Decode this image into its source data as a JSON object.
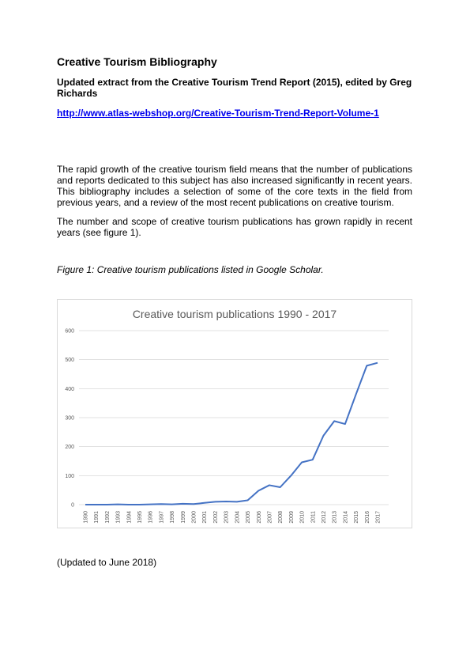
{
  "header": {
    "title": "Creative Tourism Bibliography",
    "subtitle": "Updated extract from the Creative Tourism Trend Report (2015), edited by Greg Richards",
    "link": "http://www.atlas-webshop.org/Creative-Tourism-Trend-Report-Volume-1"
  },
  "body": {
    "paragraphs": [
      "The rapid growth of the creative tourism field means that the number of publications and reports dedicated to this subject has also increased significantly in recent years. This bibliography includes a selection of some of the core texts in the field from previous years, and a review of the most recent publications on creative tourism.",
      "The number and scope of creative tourism publications has grown rapidly in recent years (see figure 1)."
    ]
  },
  "figure": {
    "caption": "Figure 1: Creative tourism publications listed in Google Scholar."
  },
  "chart_data": {
    "type": "line",
    "title": "Creative tourism publications 1990 - 2017",
    "categories": [
      "1990",
      "1991",
      "1992",
      "1993",
      "1994",
      "1995",
      "1996",
      "1997",
      "1998",
      "1999",
      "2000",
      "2001",
      "2002",
      "2003",
      "2004",
      "2005",
      "2006",
      "2007",
      "2008",
      "2009",
      "2010",
      "2011",
      "2012",
      "2013",
      "2014",
      "2015",
      "2016",
      "2017"
    ],
    "values": [
      0,
      0,
      0,
      1,
      0,
      0,
      1,
      2,
      1,
      3,
      2,
      6,
      10,
      11,
      10,
      15,
      48,
      67,
      60,
      100,
      146,
      155,
      238,
      288,
      278,
      380,
      479,
      489
    ],
    "color": "#4472c4",
    "ylim": [
      0,
      600
    ],
    "yticks": [
      0,
      100,
      200,
      300,
      400,
      500,
      600
    ],
    "grid": true
  },
  "footer": {
    "note": "(Updated to June 2018)"
  }
}
